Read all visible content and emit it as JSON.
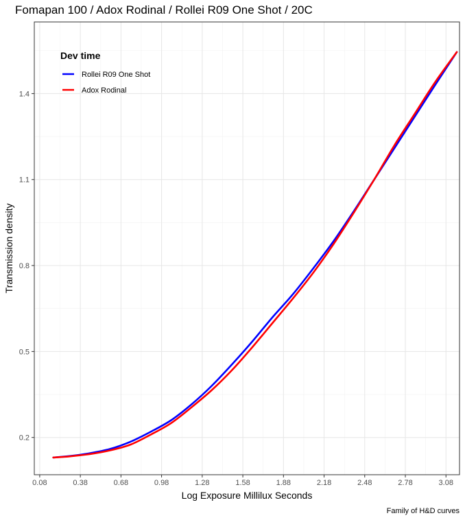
{
  "chart_data": {
    "type": "line",
    "title": "Fomapan 100 / Adox Rodinal / Rollei R09 One Shot / 20C",
    "xlabel": "Log Exposure Millilux Seconds",
    "ylabel": "Transmission density",
    "caption": "Family of H&D curves",
    "xlim": [
      0.04,
      3.18
    ],
    "ylim": [
      0.07,
      1.65
    ],
    "x_ticks": [
      0.08,
      0.38,
      0.68,
      0.98,
      1.28,
      1.58,
      1.88,
      2.18,
      2.48,
      2.78,
      3.08
    ],
    "x_tick_labels": [
      "0.08",
      "0.38",
      "0.68",
      "0.98",
      "1.28",
      "1.58",
      "1.88",
      "2.18",
      "2.48",
      "2.78",
      "3.08"
    ],
    "y_ticks": [
      0.2,
      0.5,
      0.8,
      1.1,
      1.4
    ],
    "y_tick_labels": [
      "0.2",
      "0.5",
      "0.8",
      "1.1",
      "1.4"
    ],
    "grid": true,
    "legend": {
      "title": "Dev time",
      "position": "top-left"
    },
    "series": [
      {
        "name": "Rollei R09 One Shot",
        "color": "#0000ff",
        "x": [
          0.18,
          0.3,
          0.45,
          0.6,
          0.75,
          0.9,
          1.05,
          1.2,
          1.35,
          1.5,
          1.65,
          1.8,
          1.95,
          2.1,
          2.25,
          2.4,
          2.55,
          2.7,
          2.85,
          3.0,
          3.16
        ],
        "y": [
          0.13,
          0.135,
          0.145,
          0.16,
          0.185,
          0.22,
          0.26,
          0.315,
          0.38,
          0.455,
          0.535,
          0.62,
          0.7,
          0.79,
          0.885,
          0.99,
          1.1,
          1.21,
          1.32,
          1.43,
          1.545
        ]
      },
      {
        "name": "Adox Rodinal",
        "color": "#ff0000",
        "x": [
          0.18,
          0.3,
          0.45,
          0.6,
          0.75,
          0.9,
          1.05,
          1.2,
          1.35,
          1.5,
          1.65,
          1.8,
          1.95,
          2.1,
          2.25,
          2.4,
          2.55,
          2.7,
          2.85,
          3.0,
          3.16
        ],
        "y": [
          0.13,
          0.134,
          0.142,
          0.155,
          0.175,
          0.21,
          0.25,
          0.305,
          0.365,
          0.435,
          0.515,
          0.6,
          0.685,
          0.775,
          0.875,
          0.985,
          1.1,
          1.22,
          1.33,
          1.44,
          1.545
        ]
      }
    ]
  }
}
